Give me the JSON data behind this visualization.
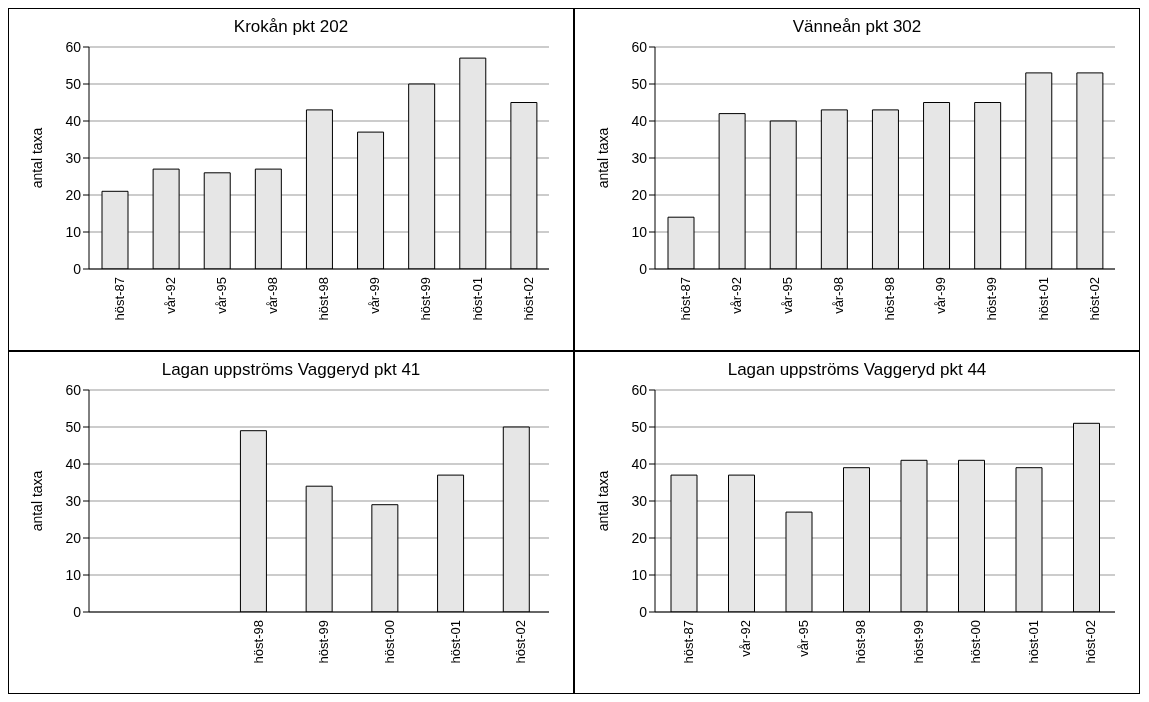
{
  "chart_data": [
    {
      "type": "bar",
      "title": "Krokån pkt 202",
      "ylabel": "antal taxa",
      "categories": [
        "höst-87",
        "vår-92",
        "vår-95",
        "vår-98",
        "höst-98",
        "vår-99",
        "höst-99",
        "höst-01",
        "höst-02"
      ],
      "values": [
        21,
        27,
        26,
        27,
        43,
        37,
        50,
        57,
        45
      ],
      "color": "#e6e6e6",
      "ylim": [
        0,
        60
      ],
      "yticks": [
        0,
        10,
        20,
        30,
        40,
        50,
        60
      ],
      "grid": "y"
    },
    {
      "type": "bar",
      "title": "Vänneån pkt 302",
      "ylabel": "antal taxa",
      "categories": [
        "höst-87",
        "vår-92",
        "vår-95",
        "vår-98",
        "höst-98",
        "vår-99",
        "höst-99",
        "höst-01",
        "höst-02"
      ],
      "values": [
        14,
        42,
        40,
        43,
        43,
        45,
        45,
        53,
        53
      ],
      "color": "#e6e6e6",
      "ylim": [
        0,
        60
      ],
      "yticks": [
        0,
        10,
        20,
        30,
        40,
        50,
        60
      ],
      "grid": "y"
    },
    {
      "type": "bar",
      "title": "Lagan uppströms Vaggeryd pkt 41",
      "ylabel": "antal taxa",
      "categories": [
        null,
        null,
        "höst-98",
        "höst-99",
        "höst-00",
        "höst-01",
        "höst-02"
      ],
      "values": [
        null,
        null,
        49,
        34,
        29,
        37,
        50
      ],
      "color": "#e6e6e6",
      "ylim": [
        0,
        60
      ],
      "yticks": [
        0,
        10,
        20,
        30,
        40,
        50,
        60
      ],
      "grid": "y"
    },
    {
      "type": "bar",
      "title": "Lagan uppströms Vaggeryd pkt 44",
      "ylabel": "antal taxa",
      "categories": [
        "höst-87",
        "vår-92",
        "vår-95",
        "höst-98",
        "höst-99",
        "höst-00",
        "höst-01",
        "höst-02"
      ],
      "values": [
        37,
        37,
        27,
        39,
        41,
        41,
        39,
        51
      ],
      "color": "#e6e6e6",
      "ylim": [
        0,
        60
      ],
      "yticks": [
        0,
        10,
        20,
        30,
        40,
        50,
        60
      ],
      "grid": "y"
    }
  ]
}
